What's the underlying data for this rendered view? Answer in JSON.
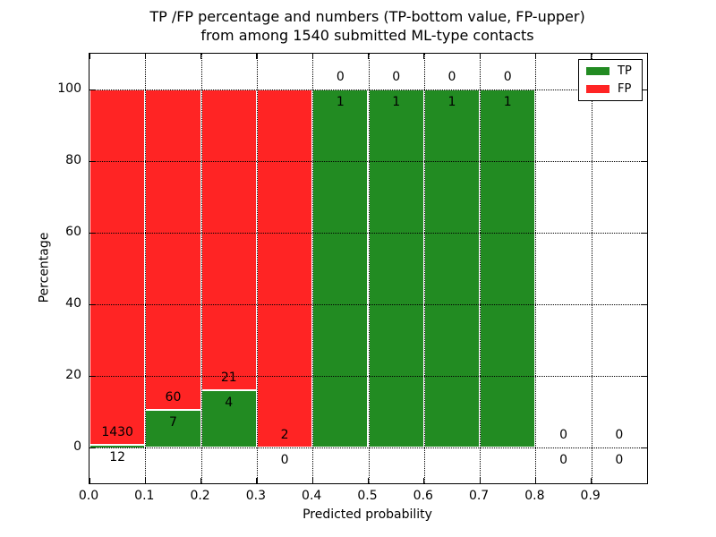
{
  "title": {
    "line1": "TP /FP percentage and numbers (TP-bottom value, FP-upper)",
    "line2": "from among 1540 submitted ML-type contacts"
  },
  "legend": {
    "position": "upper right",
    "entries": [
      {
        "label": "TP",
        "color": "#228b22"
      },
      {
        "label": "FP",
        "color": "#ff2424"
      }
    ]
  },
  "chart_data": {
    "type": "bar",
    "stacked": true,
    "normalized_to_percent": 100,
    "title": "TP /FP percentage and numbers (TP-bottom value, FP-upper) from among 1540 submitted ML-type contacts",
    "xlabel": "Predicted probability",
    "ylabel": "Percentage",
    "xlim": [
      0.0,
      1.0
    ],
    "ylim": [
      -10,
      110
    ],
    "xticks": [
      "0.0",
      "0.1",
      "0.2",
      "0.3",
      "0.4",
      "0.5",
      "0.6",
      "0.7",
      "0.8",
      "0.9"
    ],
    "yticks": [
      "0",
      "20",
      "40",
      "60",
      "80",
      "100"
    ],
    "ytick_values": [
      0,
      20,
      40,
      60,
      80,
      100
    ],
    "grid": "dotted",
    "total_contacts": 1540,
    "series": [
      {
        "name": "TP",
        "color": "#228b22",
        "label_position": "bottom value"
      },
      {
        "name": "FP",
        "color": "#ff2424",
        "label_position": "upper"
      }
    ],
    "bins": [
      {
        "range": [
          0.0,
          0.1
        ],
        "tp": 12,
        "fp": 1430
      },
      {
        "range": [
          0.1,
          0.2
        ],
        "tp": 7,
        "fp": 60
      },
      {
        "range": [
          0.2,
          0.3
        ],
        "tp": 4,
        "fp": 21
      },
      {
        "range": [
          0.3,
          0.4
        ],
        "tp": 0,
        "fp": 2
      },
      {
        "range": [
          0.4,
          0.5
        ],
        "tp": 1,
        "fp": 0
      },
      {
        "range": [
          0.5,
          0.6
        ],
        "tp": 1,
        "fp": 0
      },
      {
        "range": [
          0.6,
          0.7
        ],
        "tp": 1,
        "fp": 0
      },
      {
        "range": [
          0.7,
          0.8
        ],
        "tp": 1,
        "fp": 0
      },
      {
        "range": [
          0.8,
          0.9
        ],
        "tp": 0,
        "fp": 0
      },
      {
        "range": [
          0.9,
          1.0
        ],
        "tp": 0,
        "fp": 0
      }
    ],
    "colors": {
      "tp": "#228b22",
      "fp": "#ff2424",
      "bar_edge": "#ffffff",
      "grid": "#000000"
    }
  }
}
